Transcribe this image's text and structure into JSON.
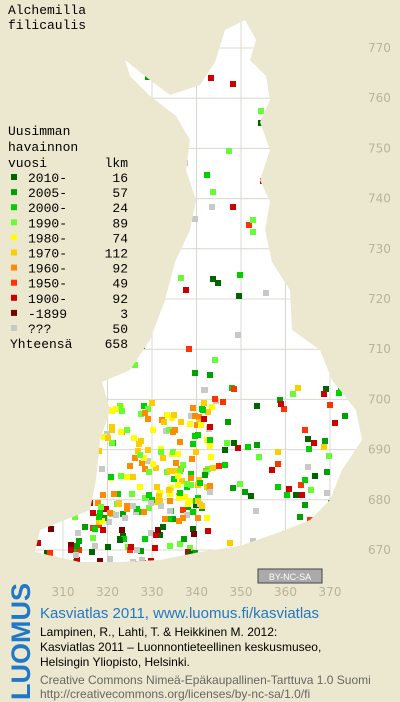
{
  "title": [
    "Alchemilla",
    "filicaulis"
  ],
  "legend": {
    "header": [
      "Uusimman",
      "havainnon",
      "vuosi"
    ],
    "count_header": "lkm",
    "items": [
      {
        "label": "2010-",
        "count": 16,
        "color": "#006400"
      },
      {
        "label": "2005-",
        "count": 57,
        "color": "#00a000"
      },
      {
        "label": "2000-",
        "count": 24,
        "color": "#00d000"
      },
      {
        "label": "1990-",
        "count": 89,
        "color": "#66ff33"
      },
      {
        "label": "1980-",
        "count": 74,
        "color": "#ffff00"
      },
      {
        "label": "1970-",
        "count": 112,
        "color": "#ffcc00"
      },
      {
        "label": "1960-",
        "count": 92,
        "color": "#ff8c00"
      },
      {
        "label": "1950-",
        "count": 49,
        "color": "#ff3300"
      },
      {
        "label": "1900-",
        "count": 92,
        "color": "#cc0000"
      },
      {
        "label": "-1899",
        "count": 3,
        "color": "#7a0000"
      },
      {
        "label": "???",
        "count": 50,
        "color": "#c8c8c8"
      }
    ],
    "total_label": "Yhteensä",
    "total": 658
  },
  "grid": {
    "y_labels": [
      770,
      760,
      750,
      740,
      730,
      720,
      710,
      700,
      690,
      680,
      670
    ],
    "x_labels": [
      310,
      320,
      330,
      340,
      350,
      360,
      370
    ]
  },
  "cc_badge": "BY-NC-SA",
  "footer": {
    "brand": "LUOMUS",
    "headline": "Kasviatlas 2011, www.luomus.fi/kasviatlas",
    "citation": [
      "Lampinen, R., Lahti, T. & Heikkinen M. 2012:",
      "Kasviatlas 2011 – Luonnontieteellinen keskusmuseo,",
      "Helsingin Yliopisto, Helsinki."
    ],
    "license": [
      "Creative Commons Nimeä-Epäkaupallinen-Tarttuva 1.0 Suomi",
      "http://creativecommons.org/licenses/by-nc-sa/1.0/fi"
    ]
  }
}
